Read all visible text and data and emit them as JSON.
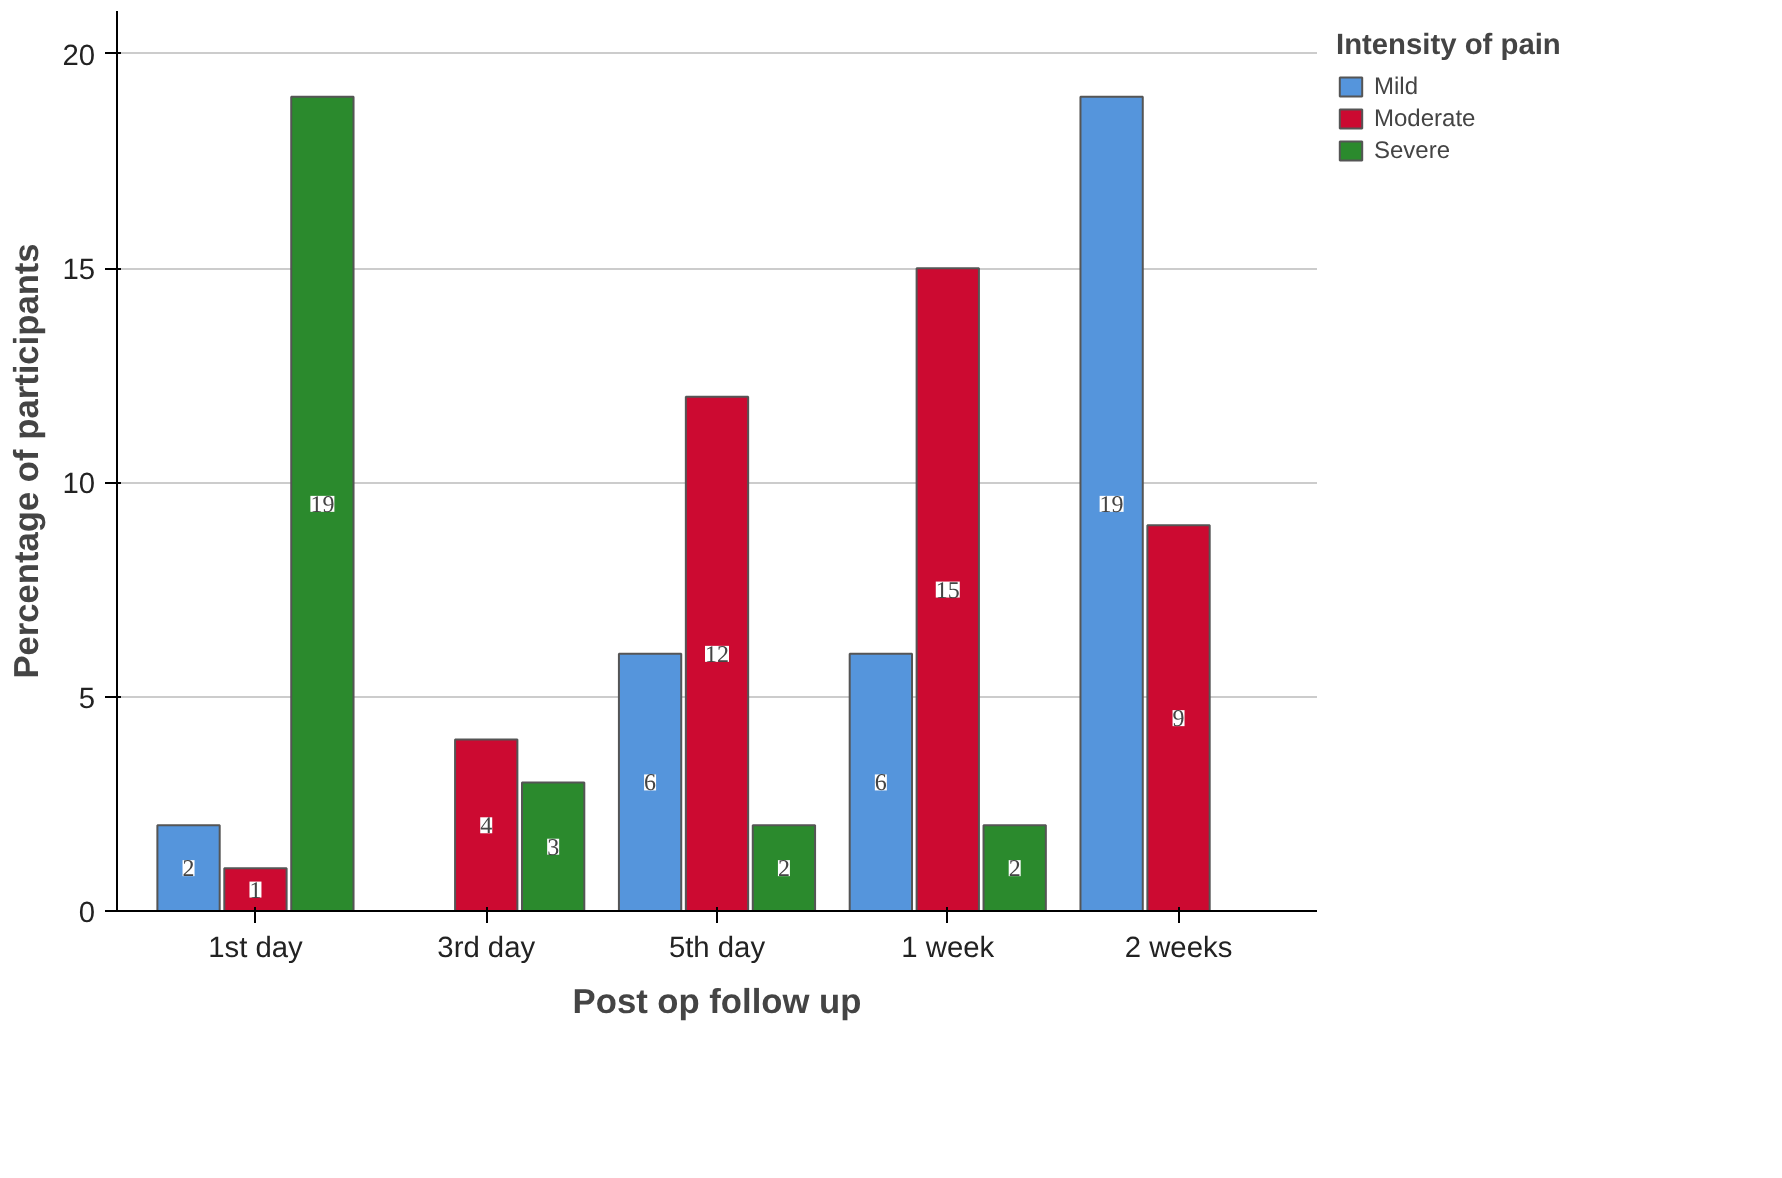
{
  "chart_data": {
    "type": "bar",
    "xlabel": "Post op follow up",
    "ylabel": "Percentage of participants",
    "legend_title": "Intensity of pain",
    "categories": [
      "1st day",
      "3rd day",
      "5th day",
      "1 week",
      "2 weeks"
    ],
    "series": [
      {
        "name": "Mild",
        "color": "#5595dc",
        "values": [
          2,
          null,
          6,
          6,
          19
        ]
      },
      {
        "name": "Moderate",
        "color": "#cc0a31",
        "values": [
          1,
          4,
          12,
          15,
          9
        ]
      },
      {
        "name": "Severe",
        "color": "#2b8a2d",
        "values": [
          19,
          3,
          2,
          2,
          null
        ]
      }
    ],
    "ylim": [
      0,
      21
    ],
    "yticks": [
      0,
      5,
      10,
      15,
      20
    ],
    "grid": "y",
    "legend": "right",
    "data_labels": true
  }
}
